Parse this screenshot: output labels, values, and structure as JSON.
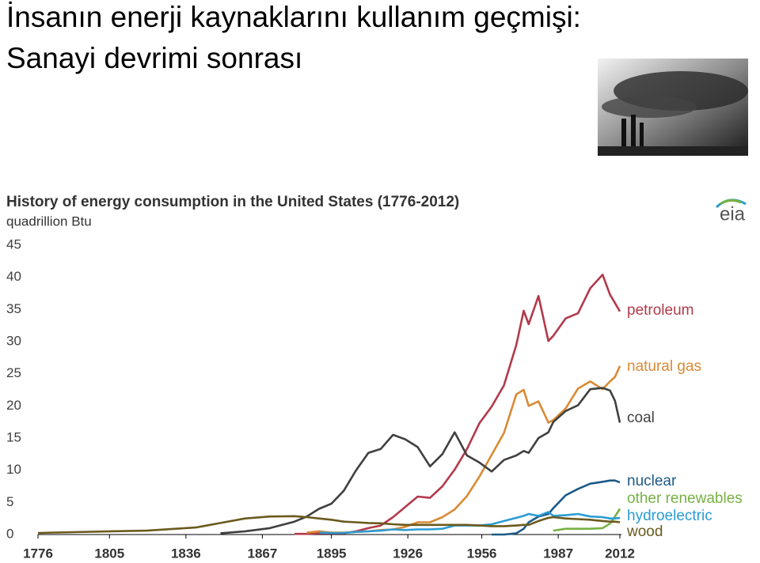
{
  "slide": {
    "title": [
      "İnsanın enerji kaynaklarını kullanım geçmişi:",
      "Sanayi devrimi sonrası"
    ]
  },
  "logo": "eia",
  "chart_data": {
    "type": "line",
    "title": "History of energy consumption in the United States (1776-2012)",
    "subtitle": "quadrillion Btu",
    "x": [
      1776,
      1800,
      1820,
      1840,
      1850,
      1860,
      1870,
      1880,
      1885,
      1890,
      1895,
      1900,
      1905,
      1910,
      1915,
      1920,
      1925,
      1930,
      1935,
      1940,
      1945,
      1950,
      1955,
      1960,
      1965,
      1970,
      1973,
      1975,
      1979,
      1983,
      1985,
      1990,
      1995,
      2000,
      2005,
      2008,
      2010,
      2012
    ],
    "xlim": [
      1776,
      2012
    ],
    "xticks": [
      1776,
      1805,
      1836,
      1867,
      1895,
      1926,
      1956,
      1987,
      2012
    ],
    "ylim": [
      0,
      45
    ],
    "yticks": [
      0,
      5,
      10,
      15,
      20,
      25,
      30,
      35,
      40,
      45
    ],
    "grid": false,
    "series": [
      {
        "name": "petroleum",
        "color": "#b23a4b",
        "values": [
          null,
          null,
          null,
          null,
          null,
          null,
          null,
          0.1,
          0.1,
          0.2,
          0.2,
          0.2,
          0.5,
          1.0,
          1.4,
          2.7,
          4.3,
          5.9,
          5.7,
          7.5,
          10.1,
          13.3,
          17.3,
          19.9,
          23.2,
          29.5,
          34.8,
          32.7,
          37.1,
          30.1,
          30.9,
          33.6,
          34.4,
          38.3,
          40.4,
          37.3,
          36.0,
          34.7
        ]
      },
      {
        "name": "natural gas",
        "color": "#d98a34",
        "values": [
          null,
          null,
          null,
          null,
          null,
          null,
          null,
          null,
          0.3,
          0.5,
          0.3,
          0.3,
          0.4,
          0.5,
          0.7,
          0.8,
          1.2,
          1.9,
          1.9,
          2.7,
          3.9,
          6.0,
          9.0,
          12.4,
          15.8,
          21.8,
          22.5,
          20.0,
          20.7,
          17.4,
          17.8,
          19.6,
          22.7,
          23.8,
          22.6,
          23.8,
          24.5,
          26.2
        ]
      },
      {
        "name": "coal",
        "color": "#404040",
        "values": [
          null,
          null,
          null,
          null,
          0.2,
          0.5,
          1.0,
          2.0,
          2.8,
          4.0,
          4.8,
          6.8,
          10,
          12.7,
          13.3,
          15.5,
          14.8,
          13.6,
          10.6,
          12.5,
          15.9,
          12.3,
          11.2,
          9.8,
          11.6,
          12.3,
          13.0,
          12.7,
          15.0,
          15.9,
          17.5,
          19.2,
          20.1,
          22.6,
          22.8,
          22.4,
          20.8,
          17.4
        ]
      },
      {
        "name": "nuclear",
        "color": "#1d5a86",
        "values": [
          null,
          null,
          null,
          null,
          null,
          null,
          null,
          null,
          null,
          null,
          null,
          null,
          null,
          null,
          null,
          null,
          null,
          null,
          null,
          null,
          null,
          null,
          null,
          0,
          0,
          0.2,
          0.9,
          1.9,
          2.8,
          3.2,
          4.1,
          6.1,
          7.1,
          7.9,
          8.2,
          8.4,
          8.4,
          8.1
        ]
      },
      {
        "name": "other renewables",
        "color": "#77b143",
        "values": [
          null,
          null,
          null,
          null,
          null,
          null,
          null,
          null,
          null,
          null,
          null,
          null,
          null,
          null,
          null,
          null,
          null,
          null,
          null,
          null,
          null,
          null,
          null,
          null,
          null,
          null,
          null,
          null,
          null,
          null,
          0.6,
          0.9,
          0.9,
          0.9,
          1.0,
          1.7,
          2.8,
          4.0
        ]
      },
      {
        "name": "hydroelectric",
        "color": "#2b9cd3",
        "values": [
          null,
          null,
          null,
          null,
          null,
          null,
          null,
          null,
          null,
          0.3,
          0.25,
          0.25,
          0.4,
          0.5,
          0.6,
          0.8,
          0.7,
          0.8,
          0.8,
          0.9,
          1.4,
          1.4,
          1.4,
          1.6,
          2.1,
          2.6,
          2.9,
          3.2,
          2.9,
          3.5,
          2.9,
          3.0,
          3.2,
          2.8,
          2.7,
          2.5,
          2.5,
          2.6
        ]
      },
      {
        "name": "wood",
        "color": "#6b5a1e",
        "values": [
          0.25,
          0.45,
          0.6,
          1.1,
          1.8,
          2.5,
          2.8,
          2.85,
          2.7,
          2.5,
          2.3,
          2.0,
          1.9,
          1.8,
          1.75,
          1.6,
          1.5,
          1.5,
          1.5,
          1.5,
          1.5,
          1.5,
          1.4,
          1.3,
          1.3,
          1.4,
          1.5,
          1.5,
          2.1,
          2.6,
          2.7,
          2.5,
          2.4,
          2.3,
          2.1,
          2.0,
          2.0,
          1.9
        ]
      }
    ]
  }
}
